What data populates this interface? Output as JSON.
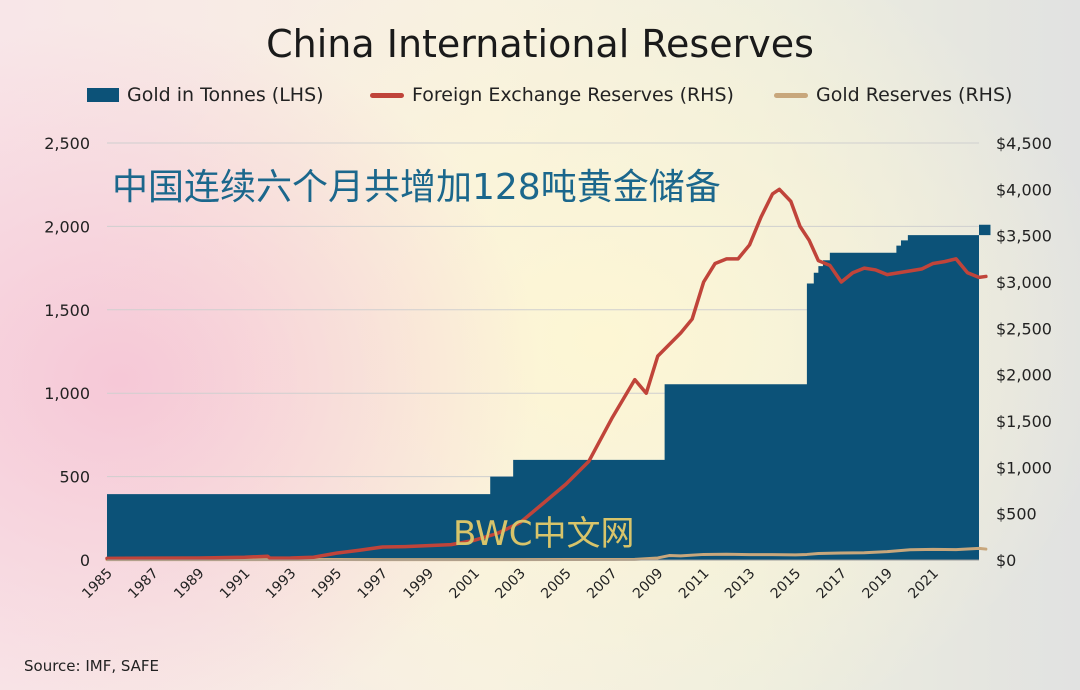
{
  "chart_data": {
    "type": "area",
    "title": "China International Reserves",
    "overlay_caption": "中国连续六个月共增加128吨黄金储备",
    "watermark": "BWC中文网",
    "source": "Source: IMF, SAFE",
    "x_range": [
      1985,
      2023
    ],
    "x_ticks": [
      "1985",
      "1987",
      "1989",
      "1991",
      "1993",
      "1995",
      "1997",
      "1999",
      "2001",
      "2003",
      "2005",
      "2007",
      "2009",
      "2011",
      "2013",
      "2015",
      "2017",
      "2019",
      "2021"
    ],
    "y_left": {
      "label": "",
      "ylim": [
        0,
        2500
      ],
      "ticks": [
        "2,500",
        "2,000",
        "1,500",
        "1,000",
        "500",
        "0"
      ],
      "tick_values": [
        2500,
        2000,
        1500,
        1000,
        500,
        0
      ]
    },
    "y_right": {
      "label": "",
      "ylim": [
        0,
        4500
      ],
      "ticks": [
        "$4,500",
        "$4,000",
        "$3,500",
        "$3,000",
        "$2,500",
        "$2,000",
        "$1,500",
        "$1,000",
        "$500",
        "$0"
      ],
      "tick_values": [
        4500,
        4000,
        3500,
        3000,
        2500,
        2000,
        1500,
        1000,
        500,
        0
      ]
    },
    "legend_position": "top",
    "grid": "horizontal",
    "series": [
      {
        "name": "Gold in Tonnes (LHS)",
        "axis": "left",
        "type": "step-area",
        "color": "#0c5278",
        "steps": [
          [
            1985,
            395
          ],
          [
            2001.7,
            500
          ],
          [
            2002.7,
            600
          ],
          [
            2009.3,
            1054
          ],
          [
            2015.5,
            1658
          ],
          [
            2015.8,
            1722
          ],
          [
            2016.0,
            1762
          ],
          [
            2016.2,
            1797
          ],
          [
            2016.5,
            1842
          ],
          [
            2019.4,
            1885
          ],
          [
            2019.6,
            1916
          ],
          [
            2019.9,
            1948
          ],
          [
            2023.1,
            1948
          ],
          [
            2023.5,
            2010
          ]
        ]
      },
      {
        "name": "Foreign Exchange Reserves (RHS)",
        "axis": "right",
        "type": "line",
        "color": "#c0443a",
        "points": [
          [
            1985,
            17
          ],
          [
            1987,
            20
          ],
          [
            1989,
            22
          ],
          [
            1991,
            30
          ],
          [
            1992,
            40
          ],
          [
            1992.1,
            20
          ],
          [
            1993,
            21
          ],
          [
            1994,
            30
          ],
          [
            1995,
            74
          ],
          [
            1996,
            105
          ],
          [
            1997,
            140
          ],
          [
            1998,
            145
          ],
          [
            1999,
            155
          ],
          [
            2000,
            166
          ],
          [
            2001,
            212
          ],
          [
            2002,
            286
          ],
          [
            2003,
            403
          ],
          [
            2004,
            610
          ],
          [
            2005,
            819
          ],
          [
            2006,
            1066
          ],
          [
            2007,
            1528
          ],
          [
            2008,
            1946
          ],
          [
            2008.5,
            1800
          ],
          [
            2009,
            2200
          ],
          [
            2010,
            2450
          ],
          [
            2010.5,
            2600
          ],
          [
            2011,
            3000
          ],
          [
            2011.5,
            3200
          ],
          [
            2012,
            3250
          ],
          [
            2012.5,
            3250
          ],
          [
            2013,
            3400
          ],
          [
            2013.5,
            3700
          ],
          [
            2014,
            3950
          ],
          [
            2014.3,
            4000
          ],
          [
            2014.8,
            3870
          ],
          [
            2015.2,
            3600
          ],
          [
            2015.6,
            3450
          ],
          [
            2016,
            3230
          ],
          [
            2016.5,
            3180
          ],
          [
            2017,
            3000
          ],
          [
            2017.5,
            3100
          ],
          [
            2018,
            3150
          ],
          [
            2018.5,
            3130
          ],
          [
            2019,
            3080
          ],
          [
            2019.5,
            3100
          ],
          [
            2020,
            3120
          ],
          [
            2020.5,
            3140
          ],
          [
            2021,
            3200
          ],
          [
            2021.5,
            3220
          ],
          [
            2022,
            3250
          ],
          [
            2022.5,
            3100
          ],
          [
            2023,
            3050
          ],
          [
            2023.3,
            3060
          ]
        ]
      },
      {
        "name": "Gold Reserves (RHS)",
        "axis": "right",
        "type": "line",
        "color": "#c8a77c",
        "points": [
          [
            1985,
            4
          ],
          [
            1995,
            5
          ],
          [
            2001,
            4
          ],
          [
            2008,
            7
          ],
          [
            2009,
            22
          ],
          [
            2009.5,
            48
          ],
          [
            2010,
            45
          ],
          [
            2011,
            60
          ],
          [
            2012,
            62
          ],
          [
            2013,
            58
          ],
          [
            2014,
            58
          ],
          [
            2015,
            55
          ],
          [
            2015.5,
            60
          ],
          [
            2016,
            70
          ],
          [
            2017,
            75
          ],
          [
            2018,
            78
          ],
          [
            2019,
            90
          ],
          [
            2020,
            110
          ],
          [
            2021,
            115
          ],
          [
            2022,
            112
          ],
          [
            2023,
            126
          ],
          [
            2023.3,
            118
          ]
        ]
      }
    ]
  }
}
